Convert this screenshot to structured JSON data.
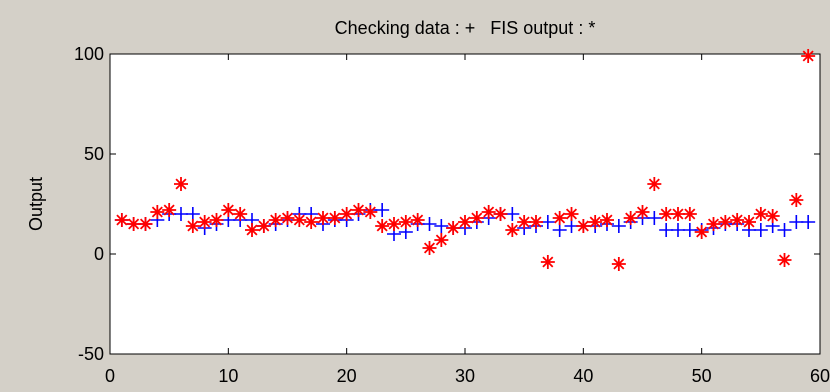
{
  "chart_data": {
    "type": "scatter",
    "title": "Checking data : +   FIS output : *",
    "xlabel": "",
    "ylabel": "Output",
    "xlim": [
      0,
      60
    ],
    "ylim": [
      -50,
      100
    ],
    "xticks": [
      0,
      10,
      20,
      30,
      40,
      50,
      60
    ],
    "yticks": [
      -50,
      0,
      50,
      100
    ],
    "grid": false,
    "series": [
      {
        "marker": "+",
        "color": "#0000ff",
        "x": [
          1,
          2,
          3,
          4,
          5,
          6,
          7,
          8,
          9,
          10,
          11,
          12,
          13,
          14,
          15,
          16,
          17,
          18,
          19,
          20,
          21,
          22,
          23,
          24,
          25,
          26,
          27,
          28,
          29,
          30,
          31,
          32,
          33,
          34,
          35,
          36,
          37,
          38,
          39,
          40,
          41,
          42,
          43,
          44,
          45,
          46,
          47,
          48,
          49,
          50,
          51,
          52,
          53,
          54,
          55,
          56,
          57,
          58,
          59
        ],
        "y": [
          17,
          15,
          15,
          17,
          20,
          20,
          20,
          13,
          15,
          17,
          17,
          17,
          14,
          15,
          17,
          20,
          20,
          15,
          17,
          17,
          20,
          22,
          22,
          10,
          11,
          15,
          15,
          14,
          13,
          13,
          16,
          18,
          20,
          20,
          13,
          14,
          16,
          12,
          14,
          14,
          14,
          15,
          14,
          16,
          18,
          18,
          12,
          12,
          12,
          12,
          13,
          15,
          15,
          12,
          12,
          14,
          12,
          16,
          16
        ]
      },
      {
        "marker": "*",
        "color": "#ff0000",
        "x": [
          1,
          2,
          3,
          4,
          5,
          6,
          7,
          8,
          9,
          10,
          11,
          12,
          13,
          14,
          15,
          16,
          17,
          18,
          19,
          20,
          21,
          22,
          23,
          24,
          25,
          26,
          27,
          28,
          29,
          30,
          31,
          32,
          33,
          34,
          35,
          36,
          37,
          38,
          39,
          40,
          41,
          42,
          43,
          44,
          45,
          46,
          47,
          48,
          49,
          50,
          51,
          52,
          53,
          54,
          55,
          56,
          57,
          58,
          59
        ],
        "y": [
          17,
          15,
          15,
          21,
          22,
          35,
          14,
          16,
          17,
          22,
          20,
          12,
          14,
          17,
          18,
          17,
          16,
          18,
          18,
          20,
          22,
          21,
          14,
          15,
          16,
          17,
          3,
          7,
          13,
          16,
          18,
          21,
          20,
          12,
          16,
          16,
          -4,
          18,
          20,
          14,
          16,
          17,
          -5,
          18,
          21,
          35,
          20,
          20,
          20,
          11,
          15,
          16,
          17,
          16,
          20,
          19,
          -3,
          27,
          99
        ]
      }
    ]
  }
}
